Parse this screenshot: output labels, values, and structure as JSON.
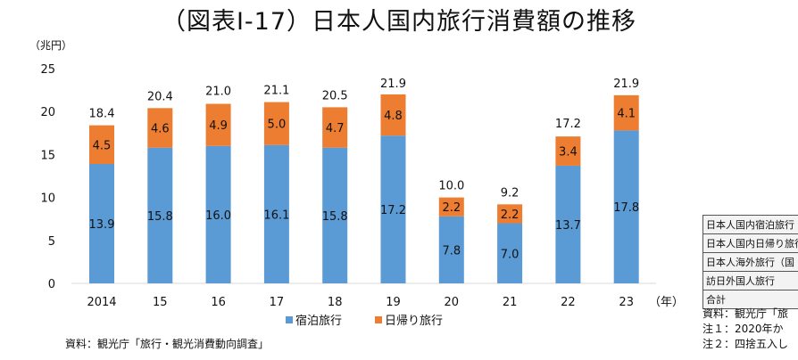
{
  "title": "（図表Ⅰ-17）日本人国内旅行消費額の推移",
  "source": "資料：観光庁「旅行・観光消費動向調査」",
  "colors": {
    "overnight": "#5b9bd5",
    "daytrip": "#ed7d31",
    "axis": "#d9d9d9"
  },
  "chart_data": {
    "type": "bar",
    "stacked": true,
    "ylabel": "（兆円）",
    "xunit": "（年）",
    "ylim": [
      0,
      25
    ],
    "yticks": [
      0,
      5,
      10,
      15,
      20,
      25
    ],
    "grid": false,
    "legend_placement": "bottom",
    "categories": [
      "2014",
      "15",
      "16",
      "17",
      "18",
      "19",
      "20",
      "21",
      "22",
      "23"
    ],
    "series": [
      {
        "name": "宿泊旅行",
        "values": [
          13.9,
          15.8,
          16.0,
          16.1,
          15.8,
          17.2,
          7.8,
          7.0,
          13.7,
          17.8
        ]
      },
      {
        "name": "日帰り旅行",
        "values": [
          4.5,
          4.6,
          4.9,
          5.0,
          4.7,
          4.8,
          2.2,
          2.2,
          3.4,
          4.1
        ]
      }
    ],
    "totals": [
      18.4,
      20.4,
      21.0,
      21.1,
      20.5,
      21.9,
      10.0,
      9.2,
      17.2,
      21.9
    ]
  },
  "side_table": {
    "rows": [
      "日本人国内宿泊旅行",
      "日本人国内日帰り旅行",
      "日本人海外旅行（国",
      "訪日外国人旅行",
      "合計"
    ]
  },
  "side_notes": [
    "資料：観光庁「旅",
    "注１：2020年か",
    "注２：四捨五入し"
  ]
}
